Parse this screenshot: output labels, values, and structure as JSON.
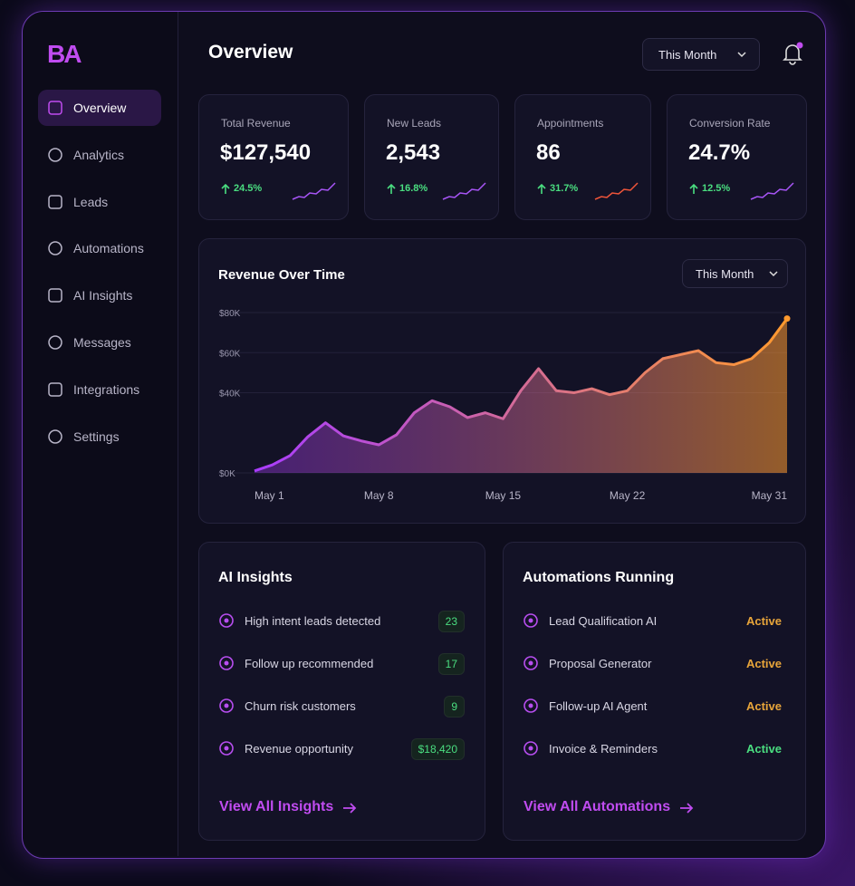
{
  "logo": "BA",
  "sidebar": {
    "items": [
      "Overview",
      "Analytics",
      "Leads",
      "Automations",
      "AI Insights",
      "Messages",
      "Integrations",
      "Settings"
    ],
    "active": 0
  },
  "header": {
    "title": "Overview",
    "period": "This Month"
  },
  "kpis": [
    {
      "label": "Total Revenue",
      "value": "$127,540",
      "change": "24.5%",
      "color": "#a855f7"
    },
    {
      "label": "New Leads",
      "value": "2,543",
      "change": "16.8%",
      "color": "#a855f7"
    },
    {
      "label": "Appointments",
      "value": "86",
      "change": "31.7%",
      "color": "#f0553a"
    },
    {
      "label": "Conversion Rate",
      "value": "24.7%",
      "change": "12.5%",
      "color": "#a855f7"
    }
  ],
  "revenue_chart": {
    "type": "line",
    "title": "Revenue Over Time",
    "period": "This Month",
    "categories": [
      "May 1",
      null,
      null,
      null,
      null,
      null,
      null,
      "May 8",
      null,
      null,
      null,
      null,
      null,
      null,
      "May 15",
      null,
      null,
      null,
      null,
      null,
      null,
      "May 22",
      null,
      null,
      null,
      null,
      null,
      null,
      null,
      null,
      "May 31"
    ],
    "values": [
      1000,
      4000,
      8600,
      18000,
      25000,
      18500,
      16000,
      14000,
      19000,
      30000,
      36000,
      33000,
      27600,
      30000,
      27000,
      41000,
      52000,
      41000,
      40000,
      42000,
      39000,
      41000,
      50000,
      57000,
      59000,
      61000,
      55000,
      54000,
      57000,
      65000,
      77000
    ],
    "ylim": [
      0,
      80000
    ],
    "yticks": [
      {
        "value": 0,
        "label": "$0K"
      },
      {
        "value": 40000,
        "label": "$40K"
      },
      {
        "value": 60000,
        "label": "$60K"
      },
      {
        "value": 80000,
        "label": "$80K"
      }
    ],
    "colors": [
      "#a93cff",
      "#ff9a2e"
    ],
    "grid": true
  },
  "insights": {
    "title": "AI Insights",
    "items": [
      {
        "label": "High intent leads detected",
        "value": "23"
      },
      {
        "label": "Follow up recommended",
        "value": "17"
      },
      {
        "label": "Churn risk customers",
        "value": "9"
      },
      {
        "label": "Revenue opportunity",
        "value": "$18,420"
      }
    ],
    "link": "View All Insights"
  },
  "automations": {
    "title": "Automations Running",
    "items": [
      {
        "label": "Lead Qualification AI",
        "status": "Active",
        "color": "#e8a53a"
      },
      {
        "label": "Proposal Generator",
        "status": "Active",
        "color": "#e8a53a"
      },
      {
        "label": "Follow-up AI Agent",
        "status": "Active",
        "color": "#e8a53a"
      },
      {
        "label": "Invoice & Reminders",
        "status": "Active",
        "color": "#4ade80"
      }
    ],
    "link": "View All Automations"
  }
}
